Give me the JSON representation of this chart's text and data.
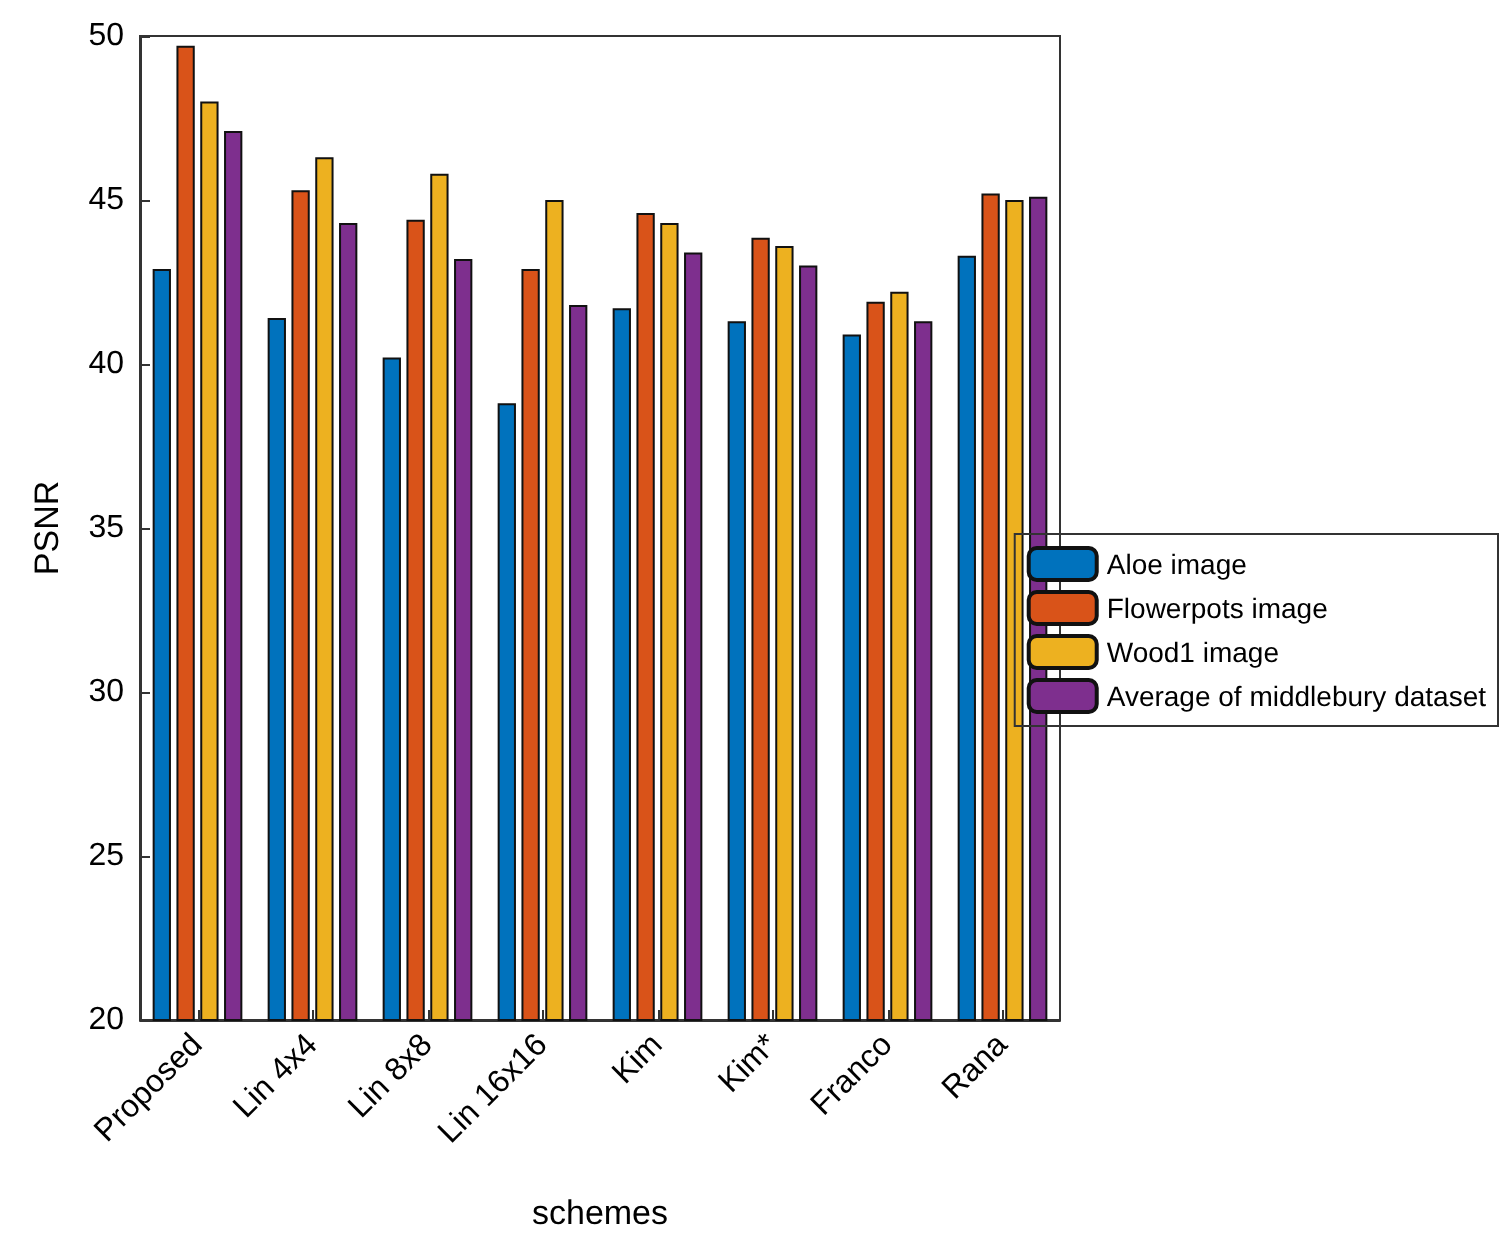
{
  "chart_data": {
    "type": "bar",
    "xlabel": "schemes",
    "ylabel": "PSNR",
    "categories": [
      "Proposed",
      "Lin 4x4",
      "Lin 8x8",
      "Lin 16x16",
      "Kim",
      "Kim*",
      "Franco",
      "Rana"
    ],
    "series": [
      {
        "name": "Aloe image",
        "color": "#0072bd",
        "values": [
          42.9,
          41.4,
          40.2,
          38.8,
          41.7,
          41.3,
          40.9,
          43.3
        ]
      },
      {
        "name": "Flowerpots image",
        "color": "#d95319",
        "values": [
          49.7,
          45.3,
          44.4,
          42.9,
          44.6,
          43.85,
          41.9,
          45.2
        ]
      },
      {
        "name": "Wood1 image",
        "color": "#edb120",
        "values": [
          48.0,
          46.3,
          45.8,
          45.0,
          44.3,
          43.6,
          42.2,
          45.0
        ]
      },
      {
        "name": "Average of middlebury dataset",
        "color": "#7e2f8e",
        "values": [
          47.1,
          44.3,
          43.2,
          41.8,
          43.4,
          43.0,
          41.3,
          45.1
        ]
      }
    ],
    "ylim": [
      20,
      50
    ],
    "yticks": [
      20,
      25,
      30,
      35,
      40,
      45,
      50
    ],
    "grid": false,
    "legend": "right"
  }
}
